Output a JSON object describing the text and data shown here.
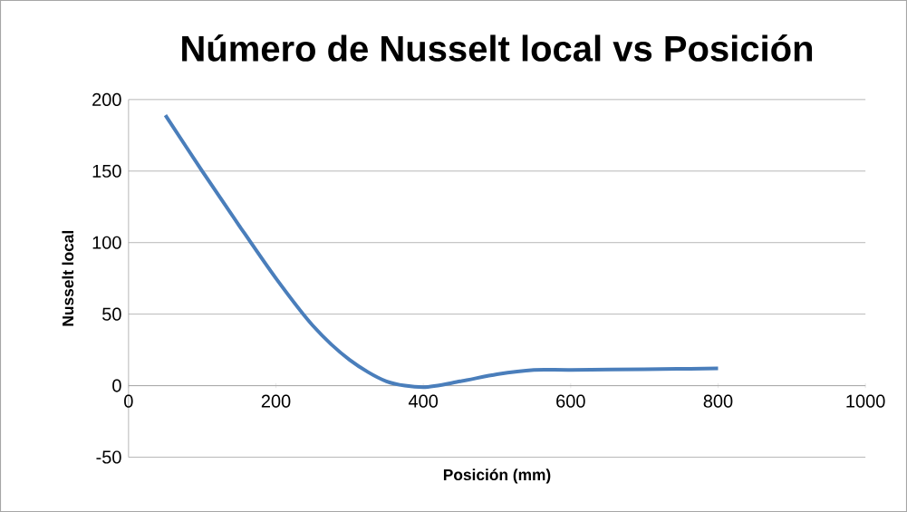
{
  "chart_data": {
    "type": "line",
    "title": "Número de Nusselt local vs Posición",
    "xlabel": "Posición (mm)",
    "ylabel": "Nusselt local",
    "x": [
      50,
      100,
      150,
      200,
      250,
      300,
      350,
      400,
      450,
      500,
      550,
      600,
      700,
      800
    ],
    "series": [
      {
        "color": "#4a7ebb",
        "values": [
          189,
          150,
          112,
          75,
          42,
          18,
          3,
          -1,
          3,
          8,
          11,
          11,
          11.5,
          12
        ]
      }
    ],
    "xlim": [
      0,
      1000
    ],
    "xticks": [
      0,
      200,
      400,
      600,
      800,
      1000
    ],
    "ylim": [
      -50,
      200
    ],
    "yticks": [
      -50,
      0,
      50,
      100,
      150,
      200
    ],
    "grid": "y",
    "marker": "none",
    "line_style": "solid"
  }
}
